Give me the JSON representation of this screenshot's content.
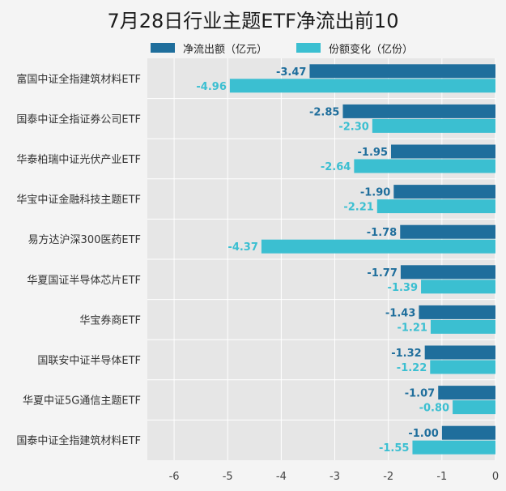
{
  "chart_data": {
    "type": "bar",
    "orientation": "horizontal",
    "title": "7月28日行业主题ETF净流出前10",
    "xlabel": "",
    "ylabel": "",
    "xlim": [
      -6.5,
      0
    ],
    "x_ticks": [
      "-6",
      "-5",
      "-4",
      "-3",
      "-2",
      "-1",
      "0"
    ],
    "grid": true,
    "legend_position": "top",
    "categories": [
      "富国中证全指建筑材料ETF",
      "国泰中证全指证券公司ETF",
      "华泰柏瑞中证光伏产业ETF",
      "华宝中证金融科技主题ETF",
      "易方达沪深300医药ETF",
      "华夏国证半导体芯片ETF",
      "华宝券商ETF",
      "国联安中证半导体ETF",
      "华夏中证5G通信主题ETF",
      "国泰中证全指建筑材料ETF"
    ],
    "series": [
      {
        "name": "净流出额（亿元）",
        "color": "#1f6e9c",
        "values": [
          -3.47,
          -2.85,
          -1.95,
          -1.9,
          -1.78,
          -1.77,
          -1.43,
          -1.32,
          -1.07,
          -1.0
        ],
        "labels": [
          "-3.47",
          "-2.85",
          "-1.95",
          "-1.90",
          "-1.78",
          "-1.77",
          "-1.43",
          "-1.32",
          "-1.07",
          "-1.00"
        ]
      },
      {
        "name": "份额变化（亿份）",
        "color": "#3bbfd1",
        "values": [
          -4.96,
          -2.3,
          -2.64,
          -2.21,
          -4.37,
          -1.39,
          -1.21,
          -1.22,
          -0.8,
          -1.55
        ],
        "labels": [
          "-4.96",
          "-2.30",
          "-2.64",
          "-2.21",
          "-4.37",
          "-1.39",
          "-1.21",
          "-1.22",
          "-0.80",
          "-1.55"
        ]
      }
    ]
  }
}
